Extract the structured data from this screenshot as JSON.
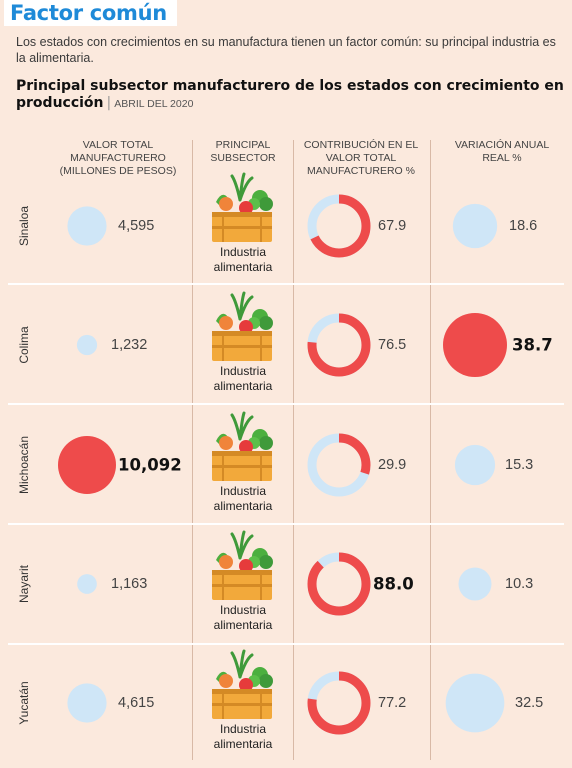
{
  "header": {
    "title": "Factor común",
    "intro": "Los estados con crecimientos en su manufactura tienen un factor común: su principal industria es la alimentaria.",
    "subtitle": "Principal subsector manufacturero de los estados con crecimiento en producción",
    "date": "ABRIL DEL 2020"
  },
  "columns": {
    "valor_total": "Valor total manufacturero (millones de pesos)",
    "principal_subsector": "Principal subsector",
    "contribucion": "Contribución en el valor total manufacturero %",
    "variacion": "Variación anual real %"
  },
  "chart_data": {
    "type": "table",
    "rows": [
      {
        "state": "Sinaloa",
        "valor_total": 4595,
        "valor_total_label": "4,595",
        "subsector": "Industria alimentaria",
        "contribucion": 67.9,
        "contribucion_label": "67.9",
        "variacion": 18.6,
        "variacion_label": "18.6"
      },
      {
        "state": "Colima",
        "valor_total": 1232,
        "valor_total_label": "1,232",
        "subsector": "Industria alimentaria",
        "contribucion": 76.5,
        "contribucion_label": "76.5",
        "variacion": 38.7,
        "variacion_label": "38.7"
      },
      {
        "state": "Michoacán",
        "valor_total": 10092,
        "valor_total_label": "10,092",
        "subsector": "Industria alimentaria",
        "contribucion": 29.9,
        "contribucion_label": "29.9",
        "variacion": 15.3,
        "variacion_label": "15.3"
      },
      {
        "state": "Nayarit",
        "valor_total": 1163,
        "valor_total_label": "1,163",
        "subsector": "Industria alimentaria",
        "contribucion": 88.0,
        "contribucion_label": "88.0",
        "variacion": 10.3,
        "variacion_label": "10.3"
      },
      {
        "state": "Yucatán",
        "valor_total": 4615,
        "valor_total_label": "4,615",
        "subsector": "Industria alimentaria",
        "contribucion": 77.2,
        "contribucion_label": "77.2",
        "variacion": 32.5,
        "variacion_label": "32.5"
      }
    ]
  },
  "colors": {
    "accent_blue": "#1e8ad8",
    "bubble_light": "#cfe6f7",
    "highlight_red": "#ee4b4b",
    "background": "#fbe9dd"
  },
  "icon": "vegetable-crate-icon"
}
